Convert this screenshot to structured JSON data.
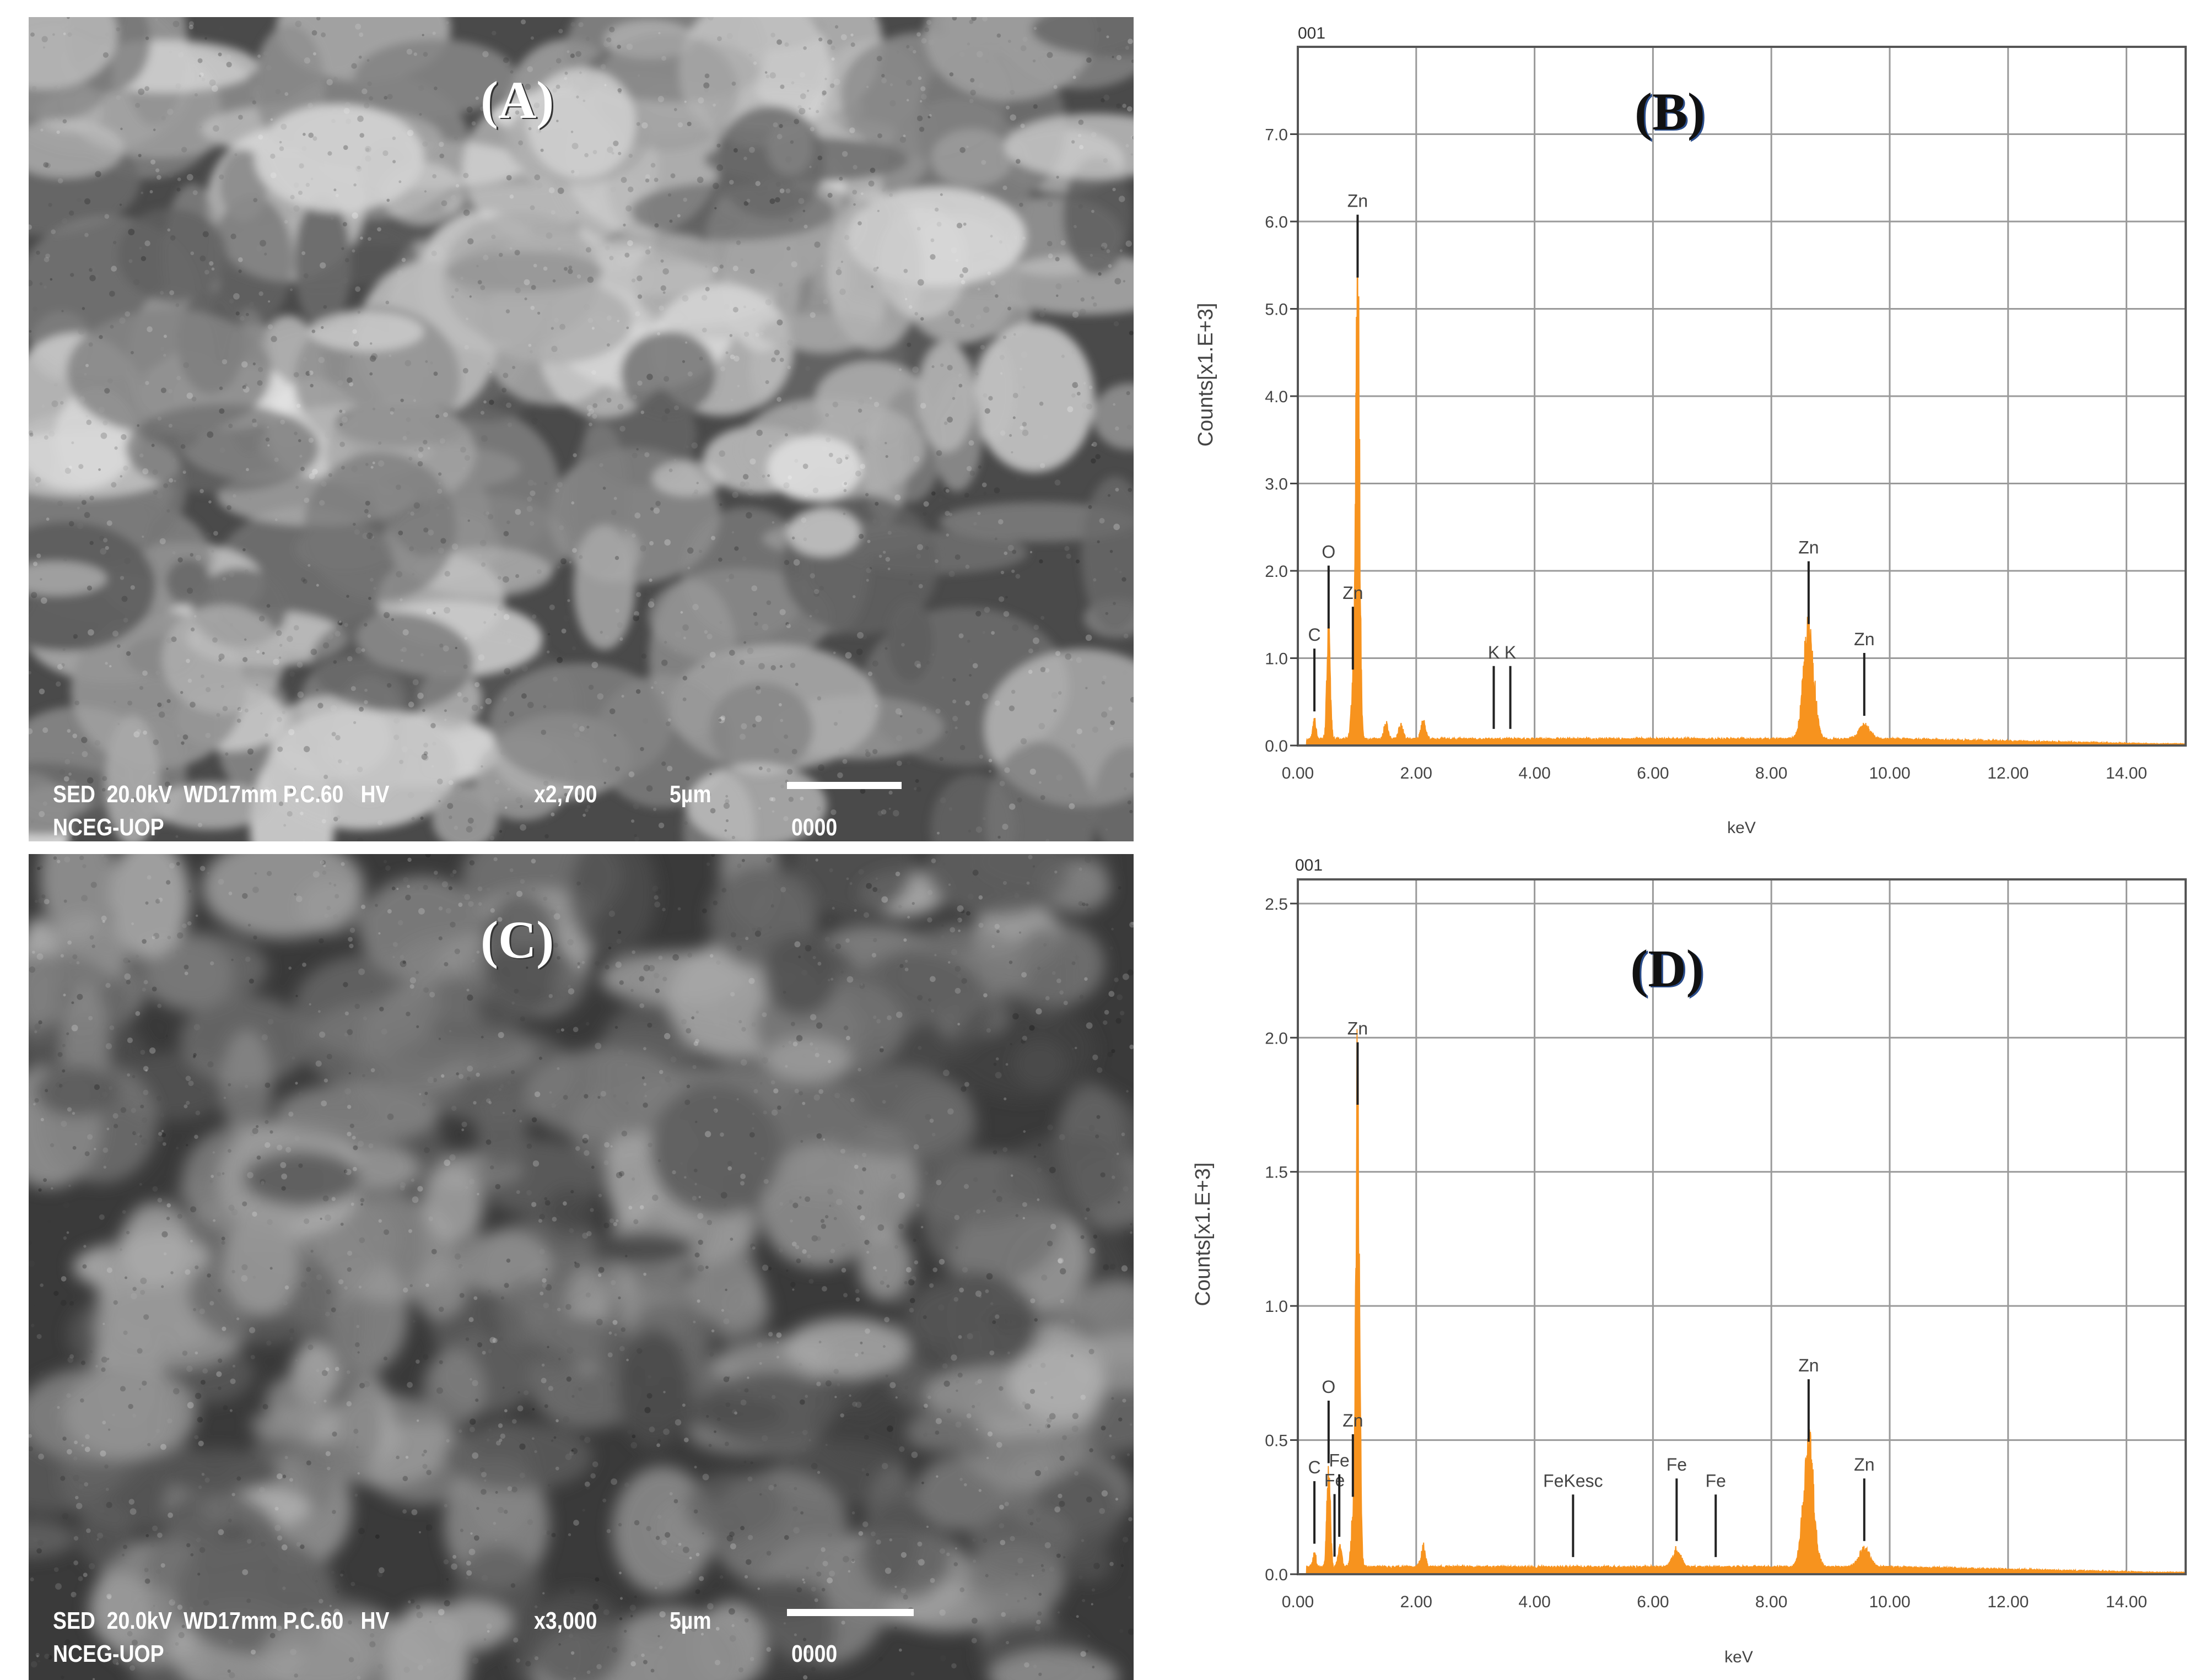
{
  "panels": {
    "a": {
      "label": "(A)",
      "caption": "SED  20.0kV  WD17mm P.C.60   HV",
      "magnification": "x2,700",
      "scale": "5µm",
      "lab": "NCEG-UOP",
      "code": "0000",
      "brightness": "light"
    },
    "c": {
      "label": "(C)",
      "caption": "SED  20.0kV  WD17mm P.C.60   HV",
      "magnification": "x3,000",
      "scale": "5µm",
      "lab": "NCEG-UOP",
      "code": "0000",
      "brightness": "dark"
    }
  },
  "chart_data": [
    {
      "type": "area",
      "panel_label": "(B)",
      "corner_label": "001",
      "xlabel": "keV",
      "ylabel": "Counts[x1.E+3]",
      "xlim": [
        0,
        15
      ],
      "ylim": [
        0,
        8
      ],
      "grid": true,
      "color": "#f7931e",
      "xticks": [
        0,
        2,
        4,
        6,
        8,
        10,
        12,
        14
      ],
      "xtick_labels": [
        "0.00",
        "2.00",
        "4.00",
        "6.00",
        "8.00",
        "10.00",
        "12.00",
        "14.00"
      ],
      "yticks": [
        0,
        1,
        2,
        3,
        4,
        5,
        6,
        7
      ],
      "ytick_labels": [
        "0.0",
        "1.0",
        "2.0",
        "3.0",
        "4.0",
        "5.0",
        "6.0",
        "7.0"
      ],
      "background_counts": 0.07,
      "peaks": [
        {
          "energy": 0.28,
          "counts": 0.2
        },
        {
          "energy": 0.52,
          "counts": 1.15
        },
        {
          "energy": 0.93,
          "counts": 0.45
        },
        {
          "energy": 1.01,
          "counts": 5.15
        },
        {
          "energy": 1.49,
          "counts": 0.17
        },
        {
          "energy": 1.74,
          "counts": 0.15
        },
        {
          "energy": 2.12,
          "counts": 0.18
        },
        {
          "energy": 8.63,
          "counts": 1.2
        },
        {
          "energy": 9.57,
          "counts": 0.15
        }
      ],
      "markers": [
        {
          "label": "C",
          "energy": 0.28
        },
        {
          "label": "O",
          "energy": 0.52
        },
        {
          "label": "Zn",
          "energy": 0.93
        },
        {
          "label": "Zn",
          "energy": 1.01
        },
        {
          "label": "K",
          "energy": 3.31
        },
        {
          "label": "K",
          "energy": 3.59
        },
        {
          "label": "Zn",
          "energy": 8.63
        },
        {
          "label": "Zn",
          "energy": 9.57
        }
      ]
    },
    {
      "type": "area",
      "panel_label": "(D)",
      "corner_label": "001",
      "xlabel": "keV",
      "ylabel": "Counts[x1.E+3]",
      "xlim": [
        0,
        15
      ],
      "ylim": [
        0,
        2.59
      ],
      "grid": true,
      "color": "#f7931e",
      "xticks": [
        0,
        2,
        4,
        6,
        8,
        10,
        12,
        14
      ],
      "xtick_labels": [
        "0.00",
        "2.00",
        "4.00",
        "6.00",
        "8.00",
        "10.00",
        "12.00",
        "14.00"
      ],
      "yticks": [
        0,
        0.5,
        1,
        1.5,
        2,
        2.5
      ],
      "ytick_labels": [
        "0.0",
        "0.5",
        "1.0",
        "1.5",
        "2.0",
        "2.5"
      ],
      "background_counts": 0.025,
      "peaks": [
        {
          "energy": 0.28,
          "counts": 0.05
        },
        {
          "energy": 0.52,
          "counts": 0.35
        },
        {
          "energy": 0.71,
          "counts": 0.08
        },
        {
          "energy": 0.93,
          "counts": 0.15
        },
        {
          "energy": 1.01,
          "counts": 1.68
        },
        {
          "energy": 2.12,
          "counts": 0.07
        },
        {
          "energy": 6.4,
          "counts": 0.06
        },
        {
          "energy": 8.63,
          "counts": 0.43
        },
        {
          "energy": 9.57,
          "counts": 0.06
        }
      ],
      "markers": [
        {
          "label": "C",
          "energy": 0.28
        },
        {
          "label": "O",
          "energy": 0.52
        },
        {
          "label": "Fe",
          "energy": 0.62
        },
        {
          "label": "Fe",
          "energy": 0.7
        },
        {
          "label": "Zn",
          "energy": 0.93
        },
        {
          "label": "Zn",
          "energy": 1.01
        },
        {
          "label": "FeKesc",
          "energy": 4.65
        },
        {
          "label": "Fe",
          "energy": 6.4
        },
        {
          "label": "Fe",
          "energy": 7.06
        },
        {
          "label": "Zn",
          "energy": 8.63
        },
        {
          "label": "Zn",
          "energy": 9.57
        }
      ]
    }
  ]
}
